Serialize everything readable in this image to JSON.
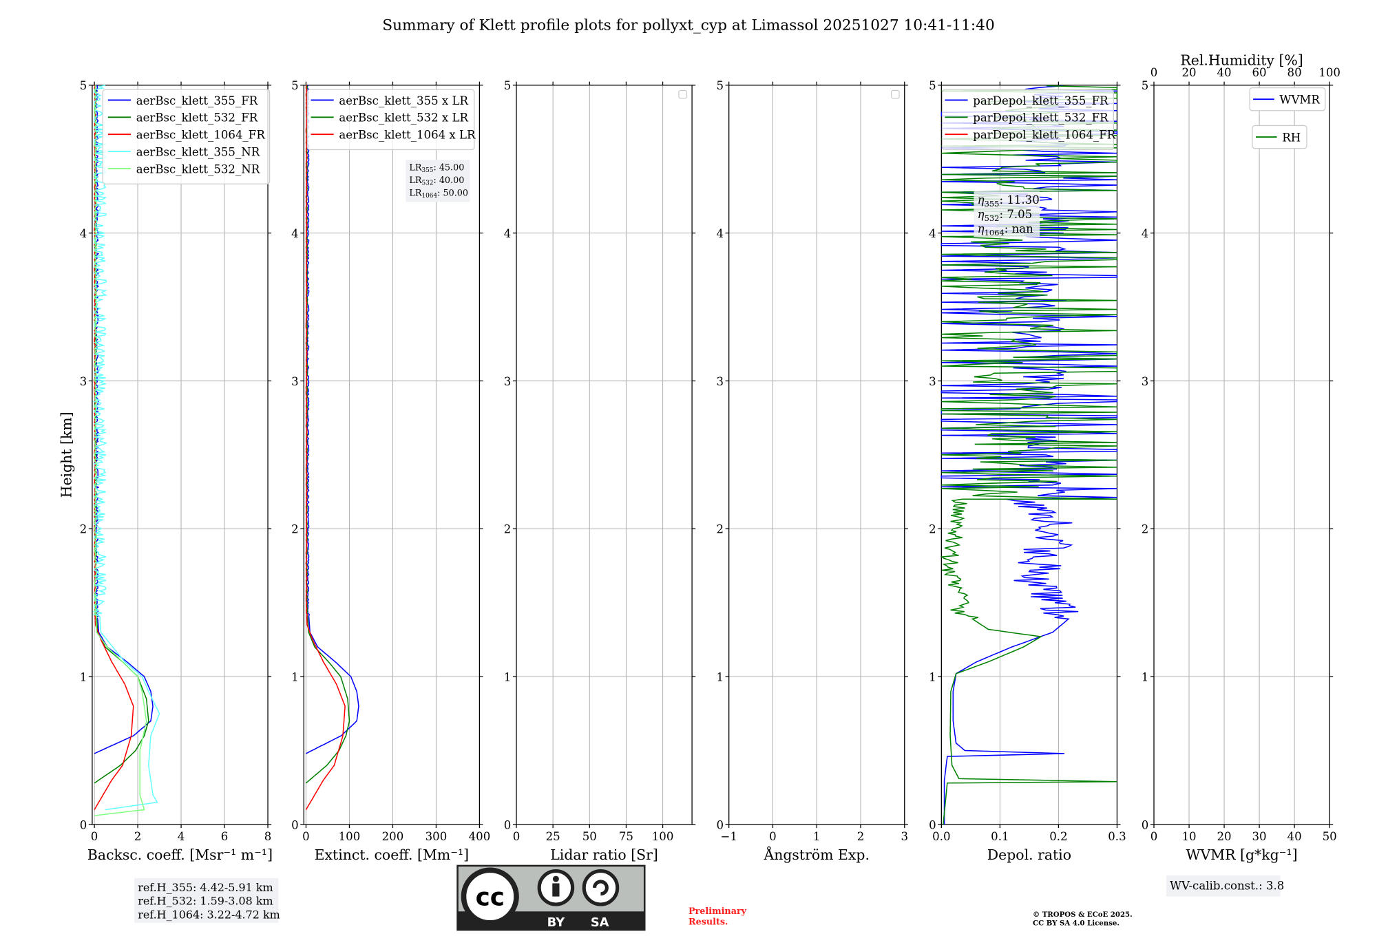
{
  "title": "Summary of Klett profile plots for pollyxt_cyp at Limassol 20251027 10:41-11:40",
  "colors": {
    "c355": "#0000ff",
    "c532": "#008000",
    "c1064": "#ff0000",
    "c355nr": "#66ffff",
    "c532nr": "#80ff80",
    "grid": "#b0b0b0",
    "box": "#f0f1f5",
    "prelim": "#ff2020"
  },
  "chart_data": [
    {
      "type": "line",
      "xlabel": "Backsc. coeff. [Msr⁻¹ m⁻¹]",
      "ylabel": "Height [km]",
      "xlim": [
        -0.1,
        8
      ],
      "ylim": [
        0,
        5
      ],
      "xticks": [
        "0",
        "2",
        "4",
        "6",
        "8"
      ],
      "xtick_values": [
        0,
        2,
        4,
        6,
        8
      ],
      "yticks": [
        "0",
        "1",
        "2",
        "3",
        "4",
        "5"
      ],
      "legend": [
        "aerBsc_klett_355_FR",
        "aerBsc_klett_532_FR",
        "aerBsc_klett_1064_FR",
        "aerBsc_klett_355_NR",
        "aerBsc_klett_532_NR"
      ],
      "series": [
        {
          "name": "aerBsc_klett_355_FR",
          "color": "c355",
          "h": [
            0.48,
            0.6,
            0.7,
            0.8,
            0.9,
            1.0,
            1.1,
            1.2,
            1.3,
            1.5
          ],
          "v": [
            0,
            1.8,
            2.6,
            2.7,
            2.6,
            2.3,
            1.5,
            0.6,
            0.2,
            0.1
          ],
          "noise": 0.08
        },
        {
          "name": "aerBsc_klett_532_FR",
          "color": "c532",
          "h": [
            0.28,
            0.4,
            0.5,
            0.6,
            0.7,
            0.85,
            1.0,
            1.1,
            1.2,
            1.3,
            1.5
          ],
          "v": [
            0,
            1.2,
            1.9,
            2.3,
            2.5,
            2.4,
            2.0,
            1.3,
            0.5,
            0.15,
            0.05
          ],
          "noise": 0.04
        },
        {
          "name": "aerBsc_klett_1064_FR",
          "color": "c1064",
          "h": [
            0.1,
            0.2,
            0.3,
            0.4,
            0.6,
            0.8,
            0.95,
            1.1,
            1.25,
            1.35,
            1.5
          ],
          "v": [
            0,
            0.4,
            0.8,
            1.3,
            1.7,
            1.8,
            1.4,
            0.8,
            0.3,
            0.05,
            0.02
          ],
          "noise": 0.04
        },
        {
          "name": "aerBsc_klett_355_NR",
          "color": "c355nr",
          "h": [
            0.1,
            0.15,
            0.2,
            0.4,
            0.6,
            0.75,
            0.9,
            1.0,
            1.1,
            1.3,
            1.5
          ],
          "v": [
            0.5,
            2.9,
            2.7,
            2.5,
            2.6,
            3.0,
            2.5,
            2.2,
            1.4,
            0.3,
            0.2
          ],
          "noise": 0.35
        },
        {
          "name": "aerBsc_klett_532_NR",
          "color": "c532nr",
          "h": [
            0.06,
            0.1,
            0.2,
            0.5,
            0.7,
            0.9,
            1.0,
            1.2,
            1.3,
            1.5
          ],
          "v": [
            0,
            2.3,
            2.1,
            2.1,
            2.4,
            2.2,
            2.0,
            0.6,
            0.1,
            0.05
          ],
          "noise": 0.05
        }
      ],
      "annotation": [
        "ref.H_355: 4.42-5.91 km",
        "ref.H_532: 1.59-3.08 km",
        "ref.H_1064: 3.22-4.72 km"
      ]
    },
    {
      "type": "line",
      "xlabel": "Extinct. coeff. [Mm⁻¹]",
      "xlim": [
        -5,
        400
      ],
      "ylim": [
        0,
        5
      ],
      "xticks": [
        "0",
        "100",
        "200",
        "300",
        "400"
      ],
      "xtick_values": [
        0,
        100,
        200,
        300,
        400
      ],
      "yticks": [
        "0",
        "1",
        "2",
        "3",
        "4",
        "5"
      ],
      "legend": [
        "aerBsc_klett_355 x LR",
        "aerBsc_klett_532 x LR",
        "aerBsc_klett_1064 x LR"
      ],
      "lidar_ratios": [
        {
          "label": "LR",
          "sub": "355",
          "value": "45.00"
        },
        {
          "label": "LR",
          "sub": "532",
          "value": "40.00"
        },
        {
          "label": "LR",
          "sub": "1064",
          "value": "50.00"
        }
      ]
    },
    {
      "type": "line",
      "xlabel": "Lidar ratio [Sr]",
      "xlim": [
        0,
        120
      ],
      "ylim": [
        0,
        5
      ],
      "xticks": [
        "0",
        "25",
        "50",
        "75",
        "100"
      ],
      "xtick_values": [
        0,
        25,
        50,
        75,
        100
      ],
      "yticks": [
        "0",
        "1",
        "2",
        "3",
        "4",
        "5"
      ],
      "series": []
    },
    {
      "type": "line",
      "xlabel": "Ångström Exp.",
      "xlim": [
        -1,
        3
      ],
      "ylim": [
        0,
        5
      ],
      "xticks": [
        "−1",
        "0",
        "1",
        "2",
        "3"
      ],
      "xtick_values": [
        -1,
        0,
        1,
        2,
        3
      ],
      "yticks": [
        "0",
        "1",
        "2",
        "3",
        "4",
        "5"
      ],
      "series": []
    },
    {
      "type": "line",
      "xlabel": "Depol. ratio",
      "xlim": [
        0,
        0.3
      ],
      "ylim": [
        0,
        5
      ],
      "xticks": [
        "0.0",
        "0.1",
        "0.2",
        "0.3"
      ],
      "xtick_values": [
        0,
        0.1,
        0.2,
        0.3
      ],
      "yticks": [
        "0",
        "1",
        "2",
        "3",
        "4",
        "5"
      ],
      "legend": [
        "parDepol_klett_355_FR",
        "parDepol_klett_532_FR",
        "parDepol_klett_1064_FR"
      ],
      "series": [
        {
          "name": "parDepol_klett_355_FR",
          "color": "c355",
          "h": [
            0.0,
            0.3,
            0.46,
            0.48,
            0.5,
            0.55,
            0.7,
            0.9,
            1.02,
            1.1,
            1.2,
            1.3,
            1.4,
            1.6,
            1.8,
            2.0,
            2.2
          ],
          "v": [
            0.005,
            0.005,
            0.01,
            0.21,
            0.04,
            0.025,
            0.02,
            0.02,
            0.025,
            0.06,
            0.12,
            0.19,
            0.22,
            0.16,
            0.17,
            0.2,
            0.15
          ],
          "noise": 0.04
        },
        {
          "name": "parDepol_klett_532_FR",
          "color": "c532",
          "h": [
            0.0,
            0.28,
            0.29,
            0.31,
            0.4,
            0.6,
            0.9,
            1.02,
            1.1,
            1.2,
            1.27,
            1.32,
            1.45,
            1.55,
            1.7,
            1.9,
            2.2
          ],
          "v": [
            0.003,
            0.01,
            0.3,
            0.03,
            0.018,
            0.015,
            0.016,
            0.025,
            0.08,
            0.14,
            0.17,
            0.08,
            0.03,
            0.04,
            0.01,
            0.02,
            0.03
          ],
          "noise": 0.015
        }
      ],
      "eta": [
        {
          "sub": "355",
          "value": "11.30"
        },
        {
          "sub": "532",
          "value": "7.05"
        },
        {
          "sub": "1064",
          "value": "nan"
        }
      ]
    },
    {
      "type": "line",
      "xlabel": "WVMR [g*kg⁻¹]",
      "xlim": [
        0,
        50
      ],
      "ylim": [
        0,
        5
      ],
      "xticks": [
        "0",
        "10",
        "20",
        "30",
        "40",
        "50"
      ],
      "xtick_values": [
        0,
        10,
        20,
        30,
        40,
        50
      ],
      "yticks": [
        "0",
        "1",
        "2",
        "3",
        "4",
        "5"
      ],
      "top_xlabel": "Rel.Humidity [%]",
      "top_xticks": [
        "0",
        "20",
        "40",
        "60",
        "80",
        "100"
      ],
      "legend": [
        "WVMR",
        "RH"
      ],
      "annotation": "WV-calib.const.: 3.8"
    }
  ],
  "footer": {
    "license_badge": [
      "cc",
      "BY",
      "SA"
    ],
    "preliminary": [
      "Preliminary",
      "Results."
    ],
    "copyright": [
      "© TROPOS & ECoE 2025.",
      "CC BY SA 4.0 License."
    ]
  }
}
